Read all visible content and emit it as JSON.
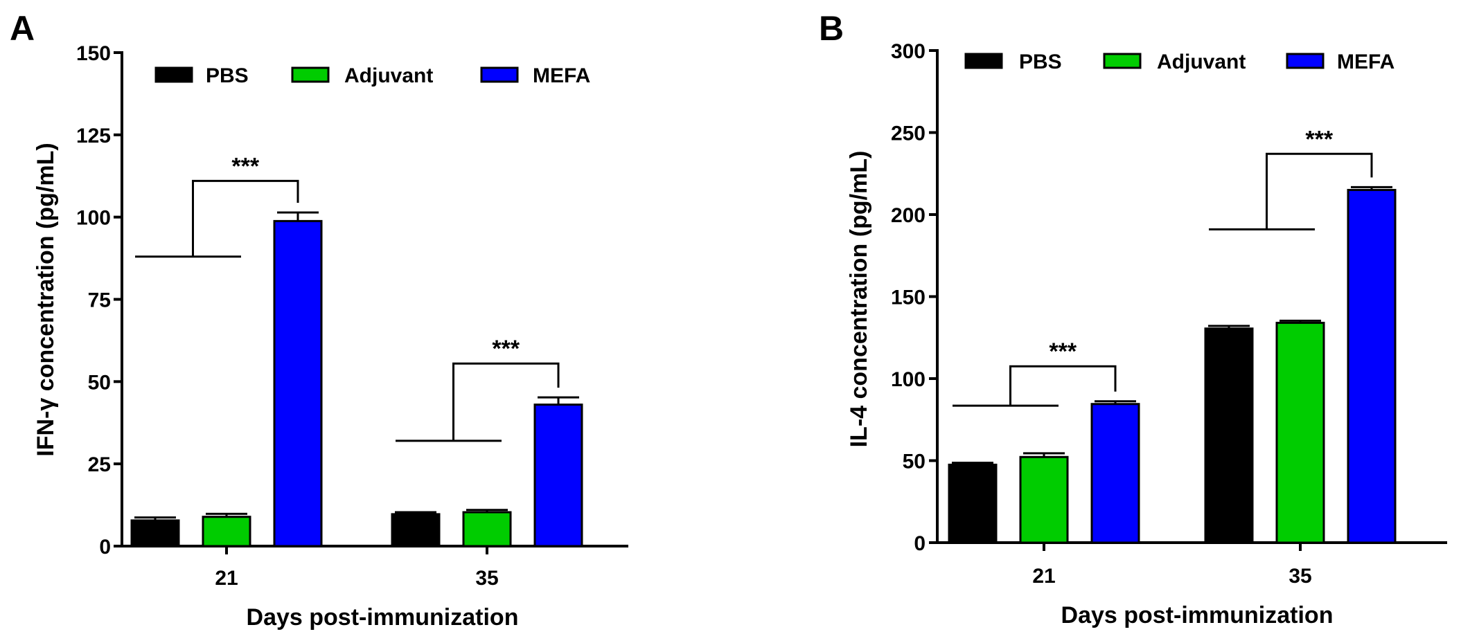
{
  "chart_data": [
    {
      "panel": "A",
      "type": "bar",
      "xlabel": "Days post-immunization",
      "ylabel": "IFN-γ concentration (pg/mL)",
      "ylim": [
        0,
        150
      ],
      "yticks": [
        0,
        25,
        50,
        75,
        100,
        125,
        150
      ],
      "categories": [
        "21",
        "35"
      ],
      "legend_position": "top",
      "series": [
        {
          "name": "PBS",
          "color": "#000000",
          "values": [
            7.8,
            9.7
          ],
          "errors": [
            0.9,
            0.6
          ]
        },
        {
          "name": "Adjuvant",
          "color": "#00cc00",
          "values": [
            8.9,
            10.3
          ],
          "errors": [
            0.9,
            0.7
          ]
        },
        {
          "name": "MEFA",
          "color": "#0000ff",
          "values": [
            98.8,
            43.0
          ],
          "errors": [
            2.6,
            2.2
          ]
        }
      ],
      "significance": [
        {
          "category": "21",
          "label": "***",
          "left_line_value": 88,
          "bracket_value": 111
        },
        {
          "category": "35",
          "label": "***",
          "left_line_value": 32,
          "bracket_value": 55.5
        }
      ]
    },
    {
      "panel": "B",
      "type": "bar",
      "xlabel": "Days post-immunization",
      "ylabel": "IL-4 concentration (pg/mL)",
      "ylim": [
        0,
        300
      ],
      "yticks": [
        0,
        50,
        100,
        150,
        200,
        250,
        300
      ],
      "categories": [
        "21",
        "35"
      ],
      "legend_position": "top",
      "series": [
        {
          "name": "PBS",
          "color": "#000000",
          "values": [
            47.5,
            130.5
          ],
          "errors": [
            1.2,
            1.6
          ]
        },
        {
          "name": "Adjuvant",
          "color": "#00cc00",
          "values": [
            52.2,
            134.0
          ],
          "errors": [
            2.3,
            1.3
          ]
        },
        {
          "name": "MEFA",
          "color": "#0000ff",
          "values": [
            84.5,
            215.0
          ],
          "errors": [
            1.7,
            1.7
          ]
        }
      ],
      "significance": [
        {
          "category": "21",
          "label": "***",
          "left_line_value": 83.5,
          "bracket_value": 107.5
        },
        {
          "category": "35",
          "label": "***",
          "left_line_value": 191,
          "bracket_value": 237
        }
      ]
    }
  ]
}
